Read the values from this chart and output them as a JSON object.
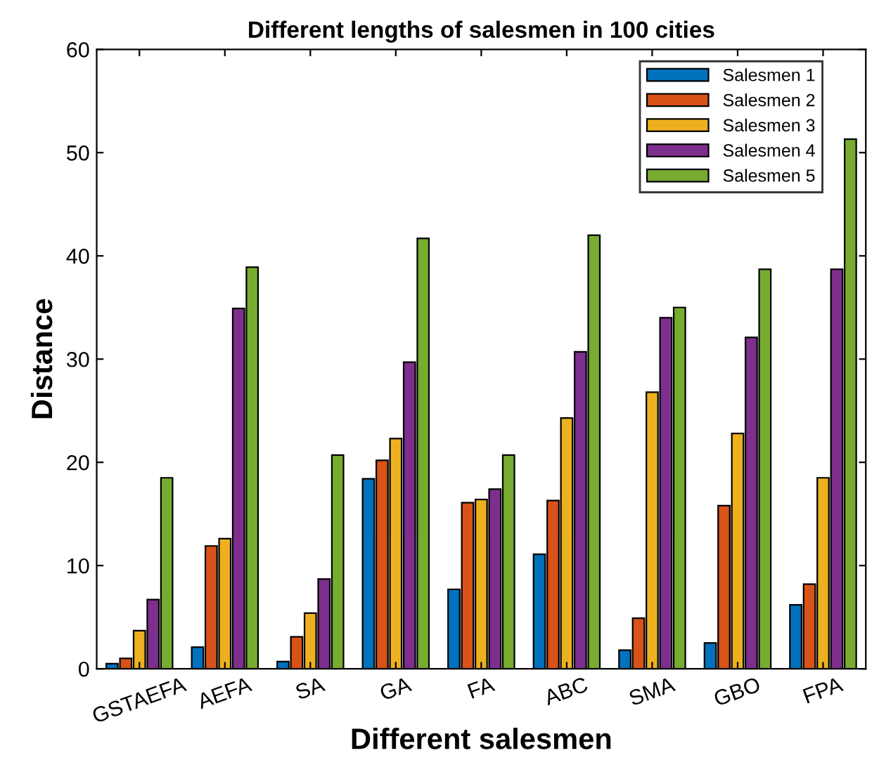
{
  "chart_data": {
    "type": "bar",
    "title": "Different lengths of salesmen in 100 cities",
    "xlabel": "Different salesmen",
    "ylabel": "Distance",
    "categories": [
      "GSTAEFA",
      "AEFA",
      "SA",
      "GA",
      "FA",
      "ABC",
      "SMA",
      "GBO",
      "FPA"
    ],
    "series": [
      {
        "name": "Salesmen 1",
        "color": "#0072bd",
        "values": [
          0.5,
          2.1,
          0.7,
          18.4,
          7.7,
          11.1,
          1.8,
          2.5,
          6.2
        ]
      },
      {
        "name": "Salesmen 2",
        "color": "#d95319",
        "values": [
          1.0,
          11.9,
          3.1,
          20.2,
          16.1,
          16.3,
          4.9,
          15.8,
          8.2
        ]
      },
      {
        "name": "Salesmen 3",
        "color": "#edb120",
        "values": [
          3.7,
          12.6,
          5.4,
          22.3,
          16.4,
          24.3,
          26.8,
          22.8,
          18.5
        ]
      },
      {
        "name": "Salesmen 4",
        "color": "#7e2f8e",
        "values": [
          6.7,
          34.9,
          8.7,
          29.7,
          17.4,
          30.7,
          34.0,
          32.1,
          38.7
        ]
      },
      {
        "name": "Salesmen 5",
        "color": "#77ac30",
        "values": [
          18.5,
          38.9,
          20.7,
          41.7,
          20.7,
          42.0,
          35.0,
          38.7,
          51.3
        ]
      }
    ],
    "ylim": [
      0,
      60
    ],
    "yticks": [
      0,
      10,
      20,
      30,
      40,
      50,
      60
    ],
    "grid": false,
    "legend": "top right"
  }
}
